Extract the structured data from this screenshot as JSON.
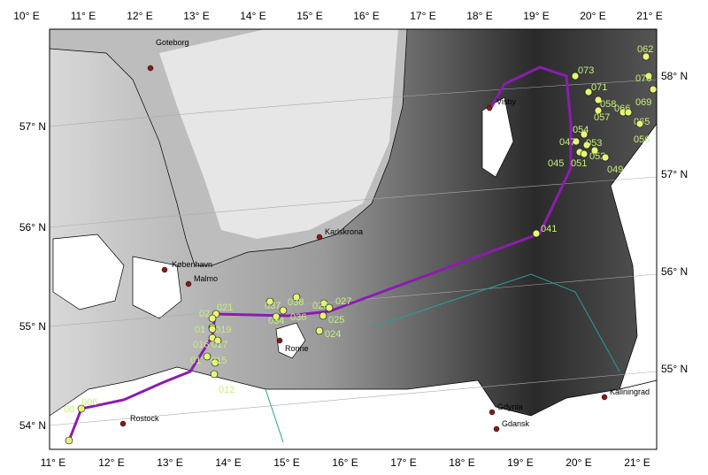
{
  "top_axis": [
    "10° E",
    "11° E",
    "12° E",
    "13° E",
    "14° E",
    "15° E",
    "16° E",
    "17° E",
    "18° E",
    "19° E",
    "20° E",
    "21° E"
  ],
  "bottom_axis": [
    "11° E",
    "12° E",
    "13° E",
    "14° E",
    "15° E",
    "16° E",
    "17° E",
    "18° E",
    "19° E",
    "20° E",
    "21° E"
  ],
  "left_axis": [
    "57° N",
    "56° N",
    "55° N",
    "54° N"
  ],
  "right_axis": [
    "58° N",
    "57° N",
    "56° N",
    "55° N"
  ],
  "cities": [
    "Goteborg",
    "Visby",
    "Karlskrona",
    "København",
    "Malmo",
    "Ronne",
    "Rostock",
    "Gdynia",
    "Gdansk",
    "Kaliningrad"
  ],
  "stations": [
    "062",
    "073",
    "070",
    "071",
    "069",
    "058",
    "066",
    "057",
    "065",
    "054",
    "056",
    "047",
    "053",
    "052",
    "045",
    "051",
    "049",
    "041",
    "037",
    "038",
    "026",
    "027",
    "036",
    "034",
    "025",
    "024",
    "021",
    "02",
    "019",
    "01",
    "016",
    "017",
    "01",
    "015",
    "012",
    "006",
    "00"
  ]
}
